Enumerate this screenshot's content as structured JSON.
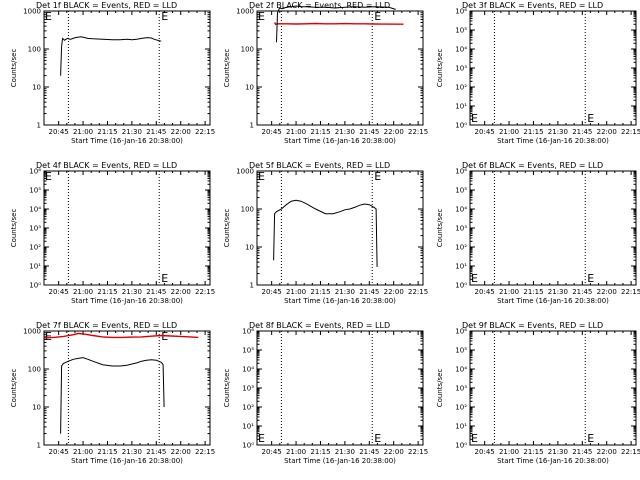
{
  "chart_data": [
    {
      "type": "line",
      "title": "Det 1f BLACK = Events, RED = LLD",
      "xlabel": "Start Time (16-Jan-16 20:38:00)",
      "ylabel": "Counts/sec",
      "yscale": "log",
      "ylim": [
        1,
        1000
      ],
      "yticks": [
        "1",
        "10",
        "100",
        "1000"
      ],
      "xlim": [
        20.6,
        22.3
      ],
      "xticks": [
        "20:45",
        "21:00",
        "21:15",
        "21:30",
        "21:45",
        "22:00",
        "22:15"
      ],
      "markers_x": [
        20.85,
        21.78
      ],
      "marker_labels": [
        "E",
        "E"
      ],
      "series": [
        {
          "color": "#000000",
          "x": [
            20.77,
            20.78,
            20.79,
            20.81,
            20.84,
            20.87,
            20.92,
            20.98,
            21.05,
            21.1,
            21.2,
            21.3,
            21.38,
            21.45,
            21.5,
            21.55,
            21.6,
            21.66,
            21.7,
            21.73,
            21.76,
            21.8
          ],
          "y": [
            20,
            120,
            190,
            170,
            190,
            180,
            200,
            210,
            190,
            185,
            180,
            175,
            175,
            180,
            175,
            180,
            190,
            200,
            195,
            180,
            170,
            160
          ]
        }
      ]
    },
    {
      "type": "line",
      "title": "Det 2f BLACK = Events, RED = LLD",
      "xlabel": "Start Time (16-Jan-16 20:38:00)",
      "ylabel": "Counts/sec",
      "yscale": "log",
      "ylim": [
        1,
        1000
      ],
      "yticks": [
        "1",
        "10",
        "100",
        "1000"
      ],
      "xlim": [
        20.6,
        22.3
      ],
      "xticks": [
        "20:45",
        "21:00",
        "21:15",
        "21:30",
        "21:45",
        "22:00",
        "22:15"
      ],
      "markers_x": [
        20.85,
        21.78
      ],
      "marker_labels": [
        "E",
        "E"
      ],
      "series": [
        {
          "color": "#e00000",
          "x": [
            20.78,
            20.79,
            20.82,
            20.9,
            21.0,
            21.1,
            21.2,
            21.3,
            21.4,
            21.5,
            21.6,
            21.7,
            21.8,
            22.1
          ],
          "y": [
            500,
            450,
            460,
            460,
            455,
            460,
            470,
            460,
            460,
            465,
            460,
            460,
            455,
            450
          ]
        },
        {
          "color": "#000000",
          "x": [
            20.8,
            20.81,
            20.83,
            20.86,
            20.9,
            20.95,
            21.0,
            21.05,
            21.1,
            21.2,
            21.3,
            21.4,
            21.5,
            21.6,
            21.7,
            21.8,
            21.95,
            22.02
          ],
          "y": [
            150,
            900,
            1200,
            1150,
            1250,
            1300,
            1350,
            1300,
            1300,
            1250,
            1250,
            1200,
            1250,
            1300,
            1250,
            1300,
            1250,
            1100
          ]
        }
      ]
    },
    {
      "type": "line",
      "title": "Det 3f BLACK = Events, RED = LLD",
      "xlabel": "Start Time (16-Jan-16 20:38:00)",
      "ylabel": "Counts/sec",
      "yscale": "log",
      "ylim": [
        1,
        1000000
      ],
      "yticks": [
        "10⁰",
        "10¹",
        "10²",
        "10³",
        "10⁴",
        "10⁵",
        "10⁶"
      ],
      "xlim": [
        20.6,
        22.3
      ],
      "xticks": [
        "20:45",
        "21:00",
        "21:15",
        "21:30",
        "21:45",
        "22:00",
        "22:15"
      ],
      "markers_x": [
        20.85,
        21.78
      ],
      "marker_labels": [
        "E",
        "E"
      ],
      "series": []
    },
    {
      "type": "line",
      "title": "Det 4f BLACK = Events, RED = LLD",
      "xlabel": "Start Time (16-Jan-16 20:38:00)",
      "ylabel": "Counts/sec",
      "yscale": "log",
      "ylim": [
        1,
        1000000
      ],
      "yticks": [
        "10⁰",
        "10¹",
        "10²",
        "10³",
        "10⁴",
        "10⁵",
        "10⁶"
      ],
      "xlim": [
        20.6,
        22.3
      ],
      "xticks": [
        "20:45",
        "21:00",
        "21:15",
        "21:30",
        "21:45",
        "22:00",
        "22:15"
      ],
      "markers_x": [
        20.85,
        21.78
      ],
      "marker_labels": [
        "E",
        "E"
      ],
      "series": []
    },
    {
      "type": "line",
      "title": "Det 5f BLACK = Events, RED = LLD",
      "xlabel": "Start Time (16-Jan-16 20:38:00)",
      "ylabel": "Counts/sec",
      "yscale": "log",
      "ylim": [
        1,
        1000
      ],
      "yticks": [
        "1",
        "10",
        "100",
        "1000"
      ],
      "xlim": [
        20.6,
        22.3
      ],
      "xticks": [
        "20:45",
        "21:00",
        "21:15",
        "21:30",
        "21:45",
        "22:00",
        "22:15"
      ],
      "markers_x": [
        20.85,
        21.78
      ],
      "marker_labels": [
        "E",
        "E"
      ],
      "series": [
        {
          "color": "#000000",
          "x": [
            20.77,
            20.78,
            20.8,
            20.85,
            20.9,
            20.95,
            21.0,
            21.05,
            21.1,
            21.2,
            21.3,
            21.38,
            21.45,
            21.5,
            21.55,
            21.6,
            21.65,
            21.7,
            21.75,
            21.8,
            21.82,
            21.83
          ],
          "y": [
            4.5,
            75,
            85,
            100,
            130,
            160,
            170,
            160,
            140,
            100,
            75,
            75,
            85,
            95,
            100,
            110,
            125,
            135,
            130,
            110,
            100,
            3
          ]
        }
      ]
    },
    {
      "type": "line",
      "title": "Det 6f BLACK = Events, RED = LLD",
      "xlabel": "Start Time (16-Jan-16 20:38:00)",
      "ylabel": "Counts/sec",
      "yscale": "log",
      "ylim": [
        1,
        1000000
      ],
      "yticks": [
        "10⁰",
        "10¹",
        "10²",
        "10³",
        "10⁴",
        "10⁵",
        "10⁶"
      ],
      "xlim": [
        20.6,
        22.3
      ],
      "xticks": [
        "20:45",
        "21:00",
        "21:15",
        "21:30",
        "21:45",
        "22:00",
        "22:15"
      ],
      "markers_x": [
        20.85,
        21.78
      ],
      "marker_labels": [
        "E",
        "E"
      ],
      "series": []
    },
    {
      "type": "line",
      "title": "Det 7f BLACK = Events, RED = LLD",
      "xlabel": "Start Time (16-Jan-16 20:38:00)",
      "ylabel": "Counts/sec",
      "yscale": "log",
      "ylim": [
        1,
        1000
      ],
      "yticks": [
        "1",
        "10",
        "100",
        "1000"
      ],
      "xlim": [
        20.6,
        22.3
      ],
      "xticks": [
        "20:45",
        "21:00",
        "21:15",
        "21:30",
        "21:45",
        "22:00",
        "22:15"
      ],
      "markers_x": [
        20.85,
        21.78
      ],
      "marker_labels": [
        "E",
        "E"
      ],
      "series": [
        {
          "color": "#e00000",
          "x": [
            20.6,
            20.7,
            20.8,
            20.9,
            20.95,
            21.0,
            21.05,
            21.1,
            21.2,
            21.3,
            21.4,
            21.5,
            21.6,
            21.7,
            21.8,
            21.9,
            22.0,
            22.1,
            22.18
          ],
          "y": [
            660,
            680,
            720,
            800,
            860,
            840,
            800,
            760,
            700,
            680,
            680,
            690,
            700,
            730,
            760,
            740,
            720,
            700,
            680
          ]
        },
        {
          "color": "#000000",
          "x": [
            20.77,
            20.78,
            20.8,
            20.85,
            20.9,
            20.95,
            21.0,
            21.05,
            21.1,
            21.2,
            21.3,
            21.38,
            21.45,
            21.5,
            21.55,
            21.6,
            21.65,
            21.7,
            21.75,
            21.8,
            21.82,
            21.83
          ],
          "y": [
            2,
            120,
            140,
            160,
            180,
            190,
            200,
            180,
            160,
            130,
            120,
            120,
            125,
            135,
            145,
            160,
            170,
            175,
            170,
            150,
            130,
            10
          ]
        }
      ]
    },
    {
      "type": "line",
      "title": "Det 8f BLACK = Events, RED = LLD",
      "xlabel": "Start Time (16-Jan-16 20:38:00)",
      "ylabel": "Counts/sec",
      "yscale": "log",
      "ylim": [
        1,
        1000000
      ],
      "yticks": [
        "10⁰",
        "10¹",
        "10²",
        "10³",
        "10⁴",
        "10⁵",
        "10⁶"
      ],
      "xlim": [
        20.6,
        22.3
      ],
      "xticks": [
        "20:45",
        "21:00",
        "21:15",
        "21:30",
        "21:45",
        "22:00",
        "22:15"
      ],
      "markers_x": [
        20.85,
        21.78
      ],
      "marker_labels": [
        "E",
        "E"
      ],
      "series": []
    },
    {
      "type": "line",
      "title": "Det 9f BLACK = Events, RED = LLD",
      "xlabel": "Start Time (16-Jan-16 20:38:00)",
      "ylabel": "Counts/sec",
      "yscale": "log",
      "ylim": [
        1,
        1000000
      ],
      "yticks": [
        "10⁰",
        "10¹",
        "10²",
        "10³",
        "10⁴",
        "10⁵",
        "10⁶"
      ],
      "xlim": [
        20.6,
        22.3
      ],
      "xticks": [
        "20:45",
        "21:00",
        "21:15",
        "21:30",
        "21:45",
        "22:00",
        "22:15"
      ],
      "markers_x": [
        20.85,
        21.78
      ],
      "marker_labels": [
        "E",
        "E"
      ],
      "series": []
    }
  ]
}
